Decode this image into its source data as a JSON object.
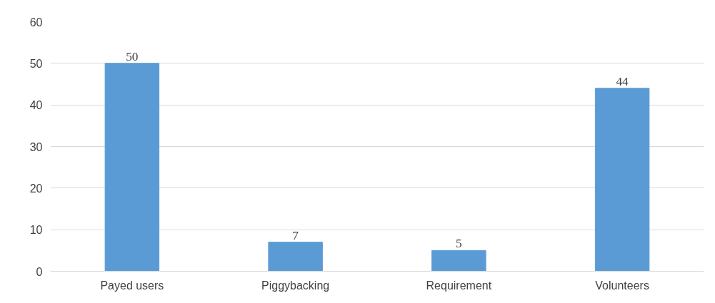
{
  "chart_data": {
    "type": "bar",
    "categories": [
      "Payed users",
      "Piggybacking",
      "Requirement",
      "Volunteers"
    ],
    "values": [
      50,
      7,
      5,
      44
    ],
    "color": "#5b9bd5",
    "ylim": [
      0,
      60
    ],
    "yticks": [
      0,
      10,
      20,
      30,
      40,
      50,
      60
    ],
    "grid": "y",
    "data_labels": true
  }
}
